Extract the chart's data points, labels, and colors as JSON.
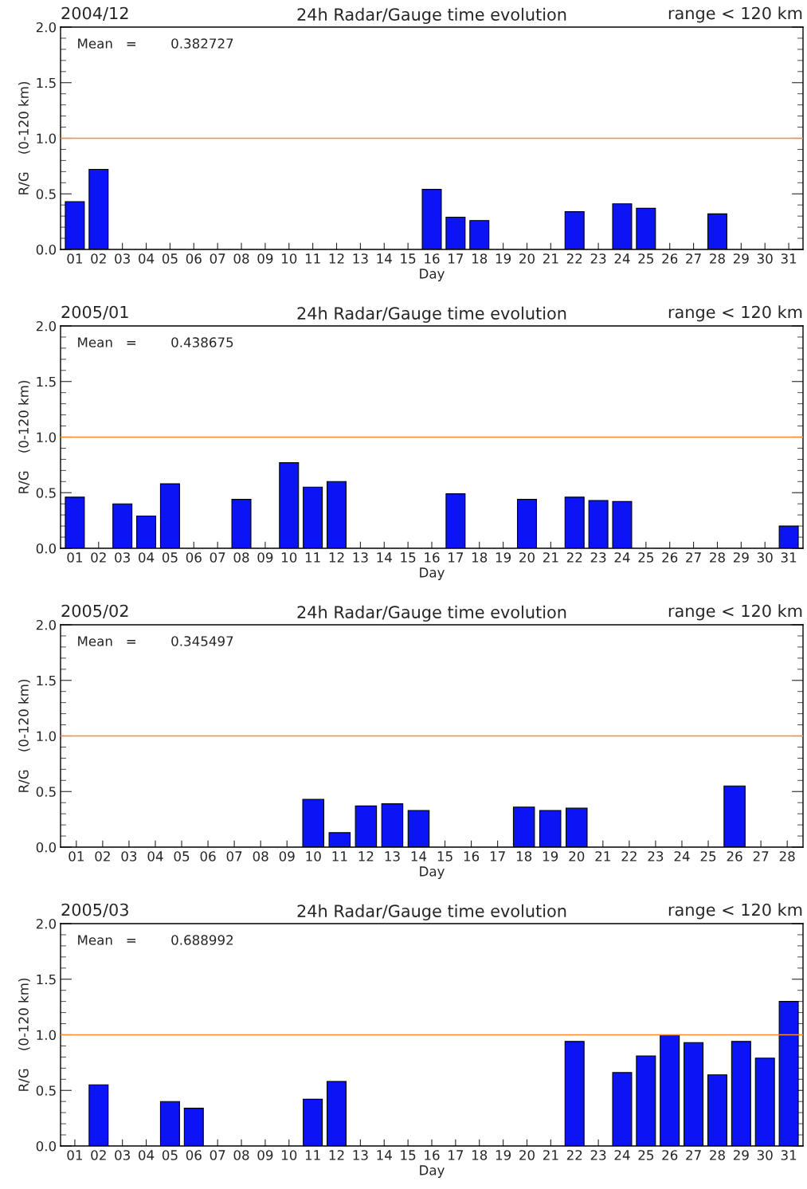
{
  "chart_data": [
    {
      "type": "bar",
      "title": "24h Radar/Gauge time evolution",
      "xlabel": "Day",
      "ylabel": "R/G    (0-120 km)",
      "annotations": [
        "2004/12",
        "range < 120 km",
        "Mean   =        0.382727"
      ],
      "color": "#0a14f5",
      "categories": [
        "01",
        "02",
        "03",
        "04",
        "05",
        "06",
        "07",
        "08",
        "09",
        "10",
        "11",
        "12",
        "13",
        "14",
        "15",
        "16",
        "17",
        "18",
        "19",
        "20",
        "21",
        "22",
        "23",
        "24",
        "25",
        "26",
        "27",
        "28",
        "29",
        "30",
        "31"
      ],
      "values": [
        0.43,
        0.72,
        null,
        null,
        null,
        null,
        null,
        null,
        null,
        null,
        null,
        null,
        null,
        null,
        null,
        0.54,
        0.29,
        0.26,
        null,
        null,
        null,
        0.34,
        null,
        0.41,
        0.37,
        null,
        null,
        0.32,
        null,
        null,
        null
      ],
      "ylim": [
        0,
        2.0
      ],
      "yticks": [
        {
          "value": 0,
          "label": "0.0"
        },
        {
          "value": 0.5,
          "label": "0.5"
        },
        {
          "value": 1.0,
          "label": "1.0"
        },
        {
          "value": 1.5,
          "label": "1.5"
        },
        {
          "value": 2.0,
          "label": "2.0"
        }
      ],
      "ref_lines": [
        {
          "axis": "y",
          "value": 1.0,
          "color": "#ff8c28"
        }
      ],
      "grid": false,
      "legend": false
    },
    {
      "type": "bar",
      "title": "24h Radar/Gauge time evolution",
      "xlabel": "Day",
      "ylabel": "R/G    (0-120 km)",
      "annotations": [
        "2005/01",
        "range < 120 km",
        "Mean   =        0.438675"
      ],
      "color": "#0a14f5",
      "categories": [
        "01",
        "02",
        "03",
        "04",
        "05",
        "06",
        "07",
        "08",
        "09",
        "10",
        "11",
        "12",
        "13",
        "14",
        "15",
        "16",
        "17",
        "18",
        "19",
        "20",
        "21",
        "22",
        "23",
        "24",
        "25",
        "26",
        "27",
        "28",
        "29",
        "30",
        "31"
      ],
      "values": [
        0.46,
        null,
        0.4,
        0.29,
        0.58,
        null,
        null,
        0.44,
        null,
        0.77,
        0.55,
        0.6,
        null,
        null,
        null,
        null,
        0.49,
        null,
        null,
        0.44,
        null,
        0.46,
        0.43,
        0.42,
        null,
        null,
        null,
        null,
        null,
        null,
        0.2
      ],
      "ylim": [
        0,
        2.0
      ],
      "yticks": [
        {
          "value": 0,
          "label": "0.0"
        },
        {
          "value": 0.5,
          "label": "0.5"
        },
        {
          "value": 1.0,
          "label": "1.0"
        },
        {
          "value": 1.5,
          "label": "1.5"
        },
        {
          "value": 2.0,
          "label": "2.0"
        }
      ],
      "ref_lines": [
        {
          "axis": "y",
          "value": 1.0,
          "color": "#ff8c28"
        }
      ],
      "grid": false,
      "legend": false
    },
    {
      "type": "bar",
      "title": "24h Radar/Gauge time evolution",
      "xlabel": "Day",
      "ylabel": "R/G    (0-120 km)",
      "annotations": [
        "2005/02",
        "range < 120 km",
        "Mean   =        0.345497"
      ],
      "color": "#0a14f5",
      "categories": [
        "01",
        "02",
        "03",
        "04",
        "05",
        "06",
        "07",
        "08",
        "09",
        "10",
        "11",
        "12",
        "13",
        "14",
        "15",
        "16",
        "17",
        "18",
        "19",
        "20",
        "21",
        "22",
        "23",
        "24",
        "25",
        "26",
        "27",
        "28"
      ],
      "values": [
        null,
        null,
        null,
        null,
        null,
        null,
        null,
        null,
        null,
        0.43,
        0.13,
        0.37,
        0.39,
        0.33,
        null,
        null,
        null,
        0.36,
        0.33,
        0.35,
        null,
        null,
        null,
        null,
        null,
        0.55,
        null,
        null
      ],
      "ylim": [
        0,
        2.0
      ],
      "yticks": [
        {
          "value": 0,
          "label": "0.0"
        },
        {
          "value": 0.5,
          "label": "0.5"
        },
        {
          "value": 1.0,
          "label": "1.0"
        },
        {
          "value": 1.5,
          "label": "1.5"
        },
        {
          "value": 2.0,
          "label": "2.0"
        }
      ],
      "ref_lines": [
        {
          "axis": "y",
          "value": 1.0,
          "color": "#ff8c28"
        }
      ],
      "grid": false,
      "legend": false
    },
    {
      "type": "bar",
      "title": "24h Radar/Gauge time evolution",
      "xlabel": "Day",
      "ylabel": "R/G    (0-120 km)",
      "annotations": [
        "2005/03",
        "range < 120 km",
        "Mean   =        0.688992"
      ],
      "color": "#0a14f5",
      "categories": [
        "01",
        "02",
        "03",
        "04",
        "05",
        "06",
        "07",
        "08",
        "09",
        "10",
        "11",
        "12",
        "13",
        "14",
        "15",
        "16",
        "17",
        "18",
        "19",
        "20",
        "21",
        "22",
        "23",
        "24",
        "25",
        "26",
        "27",
        "28",
        "29",
        "30",
        "31"
      ],
      "values": [
        null,
        0.55,
        null,
        null,
        0.4,
        0.34,
        null,
        null,
        null,
        null,
        0.42,
        0.58,
        null,
        null,
        null,
        null,
        null,
        null,
        null,
        null,
        null,
        0.94,
        null,
        0.66,
        0.81,
        1.0,
        0.93,
        0.64,
        0.94,
        0.79,
        1.3
      ],
      "ylim": [
        0,
        2.0
      ],
      "yticks": [
        {
          "value": 0,
          "label": "0.0"
        },
        {
          "value": 0.5,
          "label": "0.5"
        },
        {
          "value": 1.0,
          "label": "1.0"
        },
        {
          "value": 1.5,
          "label": "1.5"
        },
        {
          "value": 2.0,
          "label": "2.0"
        }
      ],
      "ref_lines": [
        {
          "axis": "y",
          "value": 1.0,
          "color": "#ff8c28"
        }
      ],
      "grid": false,
      "legend": false
    }
  ]
}
